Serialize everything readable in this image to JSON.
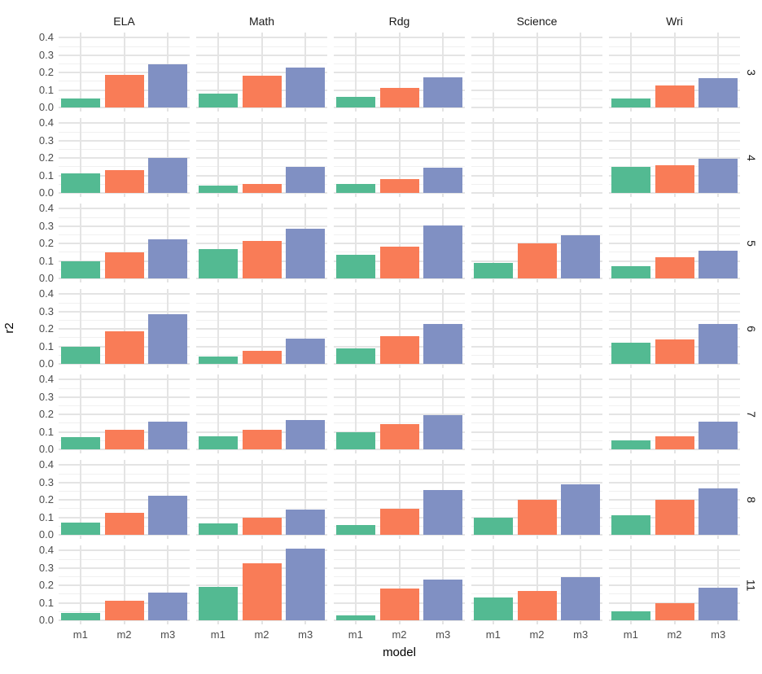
{
  "chart_data": {
    "type": "bar",
    "title": "",
    "xlabel": "model",
    "ylabel": "r2",
    "facet_columns": [
      "ELA",
      "Math",
      "Rdg",
      "Science",
      "Wri"
    ],
    "facet_rows": [
      "3",
      "4",
      "5",
      "6",
      "7",
      "8",
      "11"
    ],
    "categories": [
      "m1",
      "m2",
      "m3"
    ],
    "y_ticks": [
      0.0,
      0.1,
      0.2,
      0.3,
      0.4
    ],
    "ylim": [
      0,
      0.43
    ],
    "grid": "on",
    "legend": "none",
    "bar_colors": {
      "m1": "#53BA92",
      "m2": "#F97C57",
      "m3": "#8090C3"
    },
    "values": {
      "3": {
        "ELA": [
          0.05,
          0.185,
          0.25
        ],
        "Math": [
          0.08,
          0.18,
          0.23
        ],
        "Rdg": [
          0.06,
          0.11,
          0.175
        ],
        "Science": null,
        "Wri": [
          0.05,
          0.125,
          0.17
        ]
      },
      "4": {
        "ELA": [
          0.11,
          0.13,
          0.2
        ],
        "Math": [
          0.04,
          0.05,
          0.15
        ],
        "Rdg": [
          0.05,
          0.08,
          0.145
        ],
        "Science": null,
        "Wri": [
          0.15,
          0.16,
          0.195
        ]
      },
      "5": {
        "ELA": [
          0.1,
          0.15,
          0.225
        ],
        "Math": [
          0.17,
          0.215,
          0.285
        ],
        "Rdg": [
          0.135,
          0.18,
          0.305
        ],
        "Science": [
          0.09,
          0.2,
          0.25
        ],
        "Wri": [
          0.07,
          0.12,
          0.16
        ]
      },
      "6": {
        "ELA": [
          0.1,
          0.185,
          0.285
        ],
        "Math": [
          0.04,
          0.075,
          0.145
        ],
        "Rdg": [
          0.09,
          0.16,
          0.23
        ],
        "Science": null,
        "Wri": [
          0.12,
          0.14,
          0.23
        ]
      },
      "7": {
        "ELA": [
          0.07,
          0.11,
          0.16
        ],
        "Math": [
          0.075,
          0.11,
          0.17
        ],
        "Rdg": [
          0.1,
          0.145,
          0.195
        ],
        "Science": null,
        "Wri": [
          0.05,
          0.075,
          0.16
        ]
      },
      "8": {
        "ELA": [
          0.07,
          0.125,
          0.225
        ],
        "Math": [
          0.065,
          0.1,
          0.145
        ],
        "Rdg": [
          0.055,
          0.15,
          0.255
        ],
        "Science": [
          0.1,
          0.2,
          0.29
        ],
        "Wri": [
          0.11,
          0.2,
          0.265
        ]
      },
      "11": {
        "ELA": [
          0.04,
          0.11,
          0.16
        ],
        "Math": [
          0.19,
          0.325,
          0.41
        ],
        "Rdg": [
          0.03,
          0.18,
          0.235
        ],
        "Science": [
          0.13,
          0.17,
          0.25
        ],
        "Wri": [
          0.05,
          0.1,
          0.185
        ]
      }
    },
    "colors": {
      "grid_major": "#E4E4E4",
      "grid_minor": "#F0F0F0",
      "axis_text": "#4D4D4D",
      "strip_text": "#1A1A1A",
      "background": "#FFFFFF"
    }
  }
}
